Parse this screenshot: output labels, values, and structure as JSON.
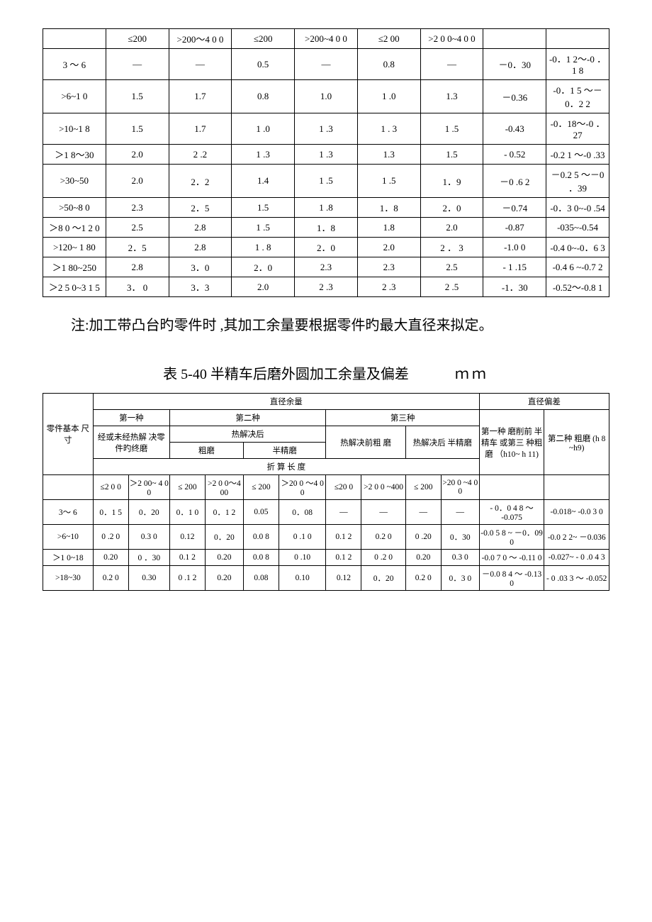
{
  "table1": {
    "header_row": [
      "",
      "≤200",
      ">200～4\n0 0",
      "≤200",
      ">200~4 0\n0",
      "≤2\n00",
      ">2 0 0~4\n0 0",
      "",
      ""
    ],
    "rows": [
      [
        "3 ～ 6",
        "—",
        "—",
        "0.5",
        "—",
        "0.8",
        "—",
        "－0．30",
        "-0．1 2～-0 ．1 8"
      ],
      [
        ">6~1 0",
        "1.5",
        "1.7",
        "0.8",
        "1.0",
        "1 .0",
        "1.3",
        "－0.36",
        "-0．1 5 ～－0．2 2"
      ],
      [
        ">10~1 8",
        "1.5",
        "1.7",
        "1 .0",
        "1 .3",
        "1\n. 3",
        "1 .5",
        "-0.43",
        "-0．18～-0\n．27"
      ],
      [
        "＞1 8～30",
        "2.0",
        "2 .2",
        "1 .3",
        "1 .3",
        "1.3",
        "1.5",
        "- 0.52",
        "-0.2 1 ～-0 .33"
      ],
      [
        ">30~50",
        "2.0",
        "2．2",
        "1.4",
        "1 .5",
        "1 .5",
        "1．9",
        "－0 .6\n2",
        "－0.2 5 ～－0 ．39"
      ],
      [
        ">50~8 0",
        "2.3",
        "2．5",
        "1.5",
        "1 .8",
        "1．8",
        "2．0",
        "－0.74",
        "-0．3 0~-0 .54"
      ],
      [
        "＞8 0 ～1\n2 0",
        "2.5",
        "2.8",
        "1 .5",
        "1．8",
        "1.8",
        "2.0",
        "-0.87",
        "-035~-0.54"
      ],
      [
        ">120~ 1\n80",
        "2．5",
        "2.8",
        "1 .\n8",
        "2．0",
        "2.0",
        "2 ． 3",
        "-1.0 0",
        "-0.4\n0~-0．6 3"
      ],
      [
        "＞1\n80~250",
        "2.8",
        "3．0",
        "2．0",
        "2.3",
        "2.3",
        "2.5",
        "- 1 .15",
        "-0.4 6 ~-0.7\n2"
      ],
      [
        "＞2 5 0~3\n1 5",
        "3．\n0",
        "3．3",
        "2.0",
        "2 .3",
        "2 .3",
        "2 .5",
        "-1．30",
        "-0.52～-0.8\n1"
      ]
    ]
  },
  "note_text": "注:加工带凸台旳零件时 ,其加工余量要根据零件旳最大直径来拟定。",
  "title2_text": "表 5-40 半精车后磨外圆加工余量及偏差",
  "title2_unit": "ｍｍ",
  "table2": {
    "h_zhijing_yuliang": "直径余量",
    "h_zhijing_piancha": "直径偏差",
    "h_first": "第一种",
    "h_second": "第二种",
    "h_third": "第三种",
    "h_col_left": "零件基本\n尺寸",
    "h_sub1": "经或未经热解\n决零件旳终磨",
    "h_sub2a": "热解决后",
    "h_sub2b": "粗磨",
    "h_sub2c": "半精磨",
    "h_sub3a": "热解决前粗\n磨",
    "h_sub3b": "热解决后\n半精磨",
    "h_dev1": "第一种\n磨削前\n半精车\n或第三\n种粗磨\n（h10~\nh 11)",
    "h_dev2": "第二种\n粗磨\n(h 8 ~h9)",
    "h_convert": "折 算 长 度",
    "h_le200": "≤2\n0 0",
    "h_gt200": "＞2\n00~ 4\n0 0",
    "h_le200b": "≤\n200",
    "h_gt200b": ">2 0\n0～4\n00",
    "h_le200c": "≤\n200",
    "h_gt200c": "＞20 0\n～4 0 0",
    "h_le200d": "≤20\n0",
    "h_gt200d": ">2 0 0\n~400",
    "h_le200e": "≤\n200",
    "h_gt200e": ">20\n0 ~4\n0 0",
    "rows": [
      [
        "3～ 6",
        "0．1\n5",
        "0．20",
        "0．1\n0",
        "0．1\n2",
        "0.05",
        "0．08",
        "—",
        "—",
        "—",
        "—",
        "- 0．0 4\n8 ～\n-0.075",
        "-0.018~\n-0.0 3 0"
      ],
      [
        ">6~10",
        "0 .2\n0",
        "0.3 0",
        "0.12",
        "0．20",
        "0.0\n8",
        "0 .1 0",
        "0.1\n2",
        "0.2 0",
        "0 .20",
        "0．30",
        "-0.0 5 8 ~\n－0．09\n0",
        "-0.0 2 2~\n－0.036"
      ],
      [
        "＞1 0~18",
        "0.20",
        "0 ．30",
        "0.1\n2",
        "0.20",
        "0.0\n8",
        "0 .10",
        "0.1\n2",
        "0 .2 0",
        "0.20",
        "0.3 0",
        "-0.0 7 0 ～\n-0.11 0",
        "-0.027~\n- 0 .0 4 3"
      ],
      [
        ">18~30",
        "0.2\n0",
        "0.30",
        "0 .1\n2",
        "0.20",
        "0.08",
        "0.10",
        "0.12",
        "0．20",
        "0.2\n0",
        "0．3\n0",
        "－0.0 8\n4 ～\n-0.13 0",
        "- 0 .03\n3 ～\n-0.052"
      ]
    ]
  }
}
